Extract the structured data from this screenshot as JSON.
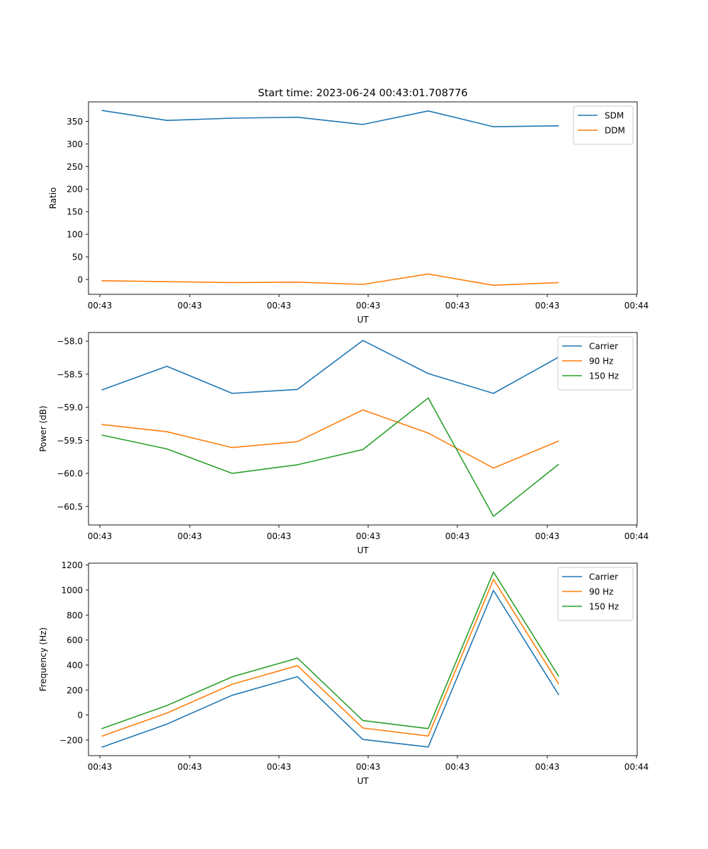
{
  "chart_data": [
    {
      "type": "line",
      "title": "Start time: 2023-06-24 00:43:01.708776",
      "xlabel": "UT",
      "ylabel": "Ratio",
      "x": [
        1,
        2,
        3,
        4,
        5,
        6,
        7,
        8
      ],
      "xlim": [
        0.8,
        9.2
      ],
      "xtick_labels": [
        "00:43",
        "00:43",
        "00:43",
        "00:43",
        "00:43",
        "00:43",
        "00:44"
      ],
      "ylim": [
        -33,
        393
      ],
      "yticks": [
        0,
        50,
        100,
        150,
        200,
        250,
        300,
        350
      ],
      "grid": false,
      "legend": "upper right",
      "series": [
        {
          "name": "SDM",
          "color": "#1f77b4",
          "values": [
            374,
            352,
            357,
            359,
            343,
            373,
            338,
            340
          ]
        },
        {
          "name": "DDM",
          "color": "#ff7f0e",
          "values": [
            -3,
            -5,
            -7,
            -6,
            -11,
            12,
            -13,
            -7
          ]
        }
      ]
    },
    {
      "type": "line",
      "title": "",
      "xlabel": "UT",
      "ylabel": "Power (dB)",
      "x": [
        1,
        2,
        3,
        4,
        5,
        6,
        7,
        8
      ],
      "xlim": [
        0.8,
        9.2
      ],
      "xtick_labels": [
        "00:43",
        "00:43",
        "00:43",
        "00:43",
        "00:43",
        "00:43",
        "00:44"
      ],
      "ylim": [
        -60.78,
        -57.87
      ],
      "yticks": [
        -58.0,
        -58.5,
        -59.0,
        -59.5,
        -60.0,
        -60.5
      ],
      "ytick_labels": [
        "−58.0",
        "−58.5",
        "−59.0",
        "−59.5",
        "−60.0",
        "−60.5"
      ],
      "grid": false,
      "legend": "upper right",
      "series": [
        {
          "name": "Carrier",
          "color": "#1f77b4",
          "values": [
            -58.74,
            -58.38,
            -58.79,
            -58.73,
            -57.99,
            -58.49,
            -58.79,
            -58.24
          ]
        },
        {
          "name": "90 Hz",
          "color": "#ff7f0e",
          "values": [
            -59.26,
            -59.37,
            -59.61,
            -59.52,
            -59.04,
            -59.39,
            -59.92,
            -59.51
          ]
        },
        {
          "name": "150 Hz",
          "color": "#2ca02c",
          "values": [
            -59.42,
            -59.63,
            -60.0,
            -59.87,
            -59.64,
            -58.86,
            -60.65,
            -59.86
          ]
        }
      ]
    },
    {
      "type": "line",
      "title": "",
      "xlabel": "UT",
      "ylabel": "Frequency (Hz)",
      "x": [
        1,
        2,
        3,
        4,
        5,
        6,
        7,
        8
      ],
      "xlim": [
        0.8,
        9.2
      ],
      "xtick_labels": [
        "00:43",
        "00:43",
        "00:43",
        "00:43",
        "00:43",
        "00:43",
        "00:44"
      ],
      "ylim": [
        -325,
        1215
      ],
      "yticks": [
        -200,
        0,
        200,
        400,
        600,
        800,
        1000,
        1200
      ],
      "ytick_labels": [
        "−200",
        "0",
        "200",
        "400",
        "600",
        "800",
        "1000",
        "1200"
      ],
      "grid": false,
      "legend": "upper right",
      "series": [
        {
          "name": "Carrier",
          "color": "#1f77b4",
          "values": [
            -258,
            -73,
            158,
            307,
            -196,
            -256,
            997,
            160
          ]
        },
        {
          "name": "90 Hz",
          "color": "#ff7f0e",
          "values": [
            -170,
            15,
            246,
            395,
            -104,
            -168,
            1085,
            248
          ]
        },
        {
          "name": "150 Hz",
          "color": "#2ca02c",
          "values": [
            -110,
            76,
            306,
            455,
            -44,
            -109,
            1145,
            308
          ]
        }
      ]
    }
  ]
}
